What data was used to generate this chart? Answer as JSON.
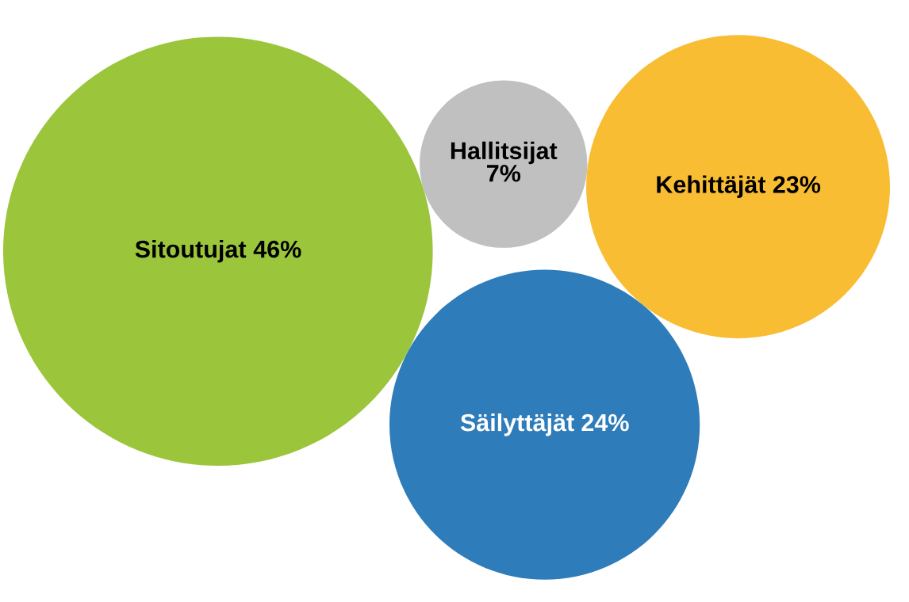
{
  "chart_data": {
    "type": "other",
    "categories": [
      "Sitoutujat",
      "Hallitsijat",
      "Kehittäjät",
      "Säilyttäjät"
    ],
    "values": [
      46,
      7,
      23,
      24
    ],
    "value_labels": [
      "46%",
      "7%",
      "23%",
      "24%"
    ],
    "colors": [
      "#9bc53b",
      "#c0c0c0",
      "#f8bd33",
      "#2e7cba"
    ]
  }
}
